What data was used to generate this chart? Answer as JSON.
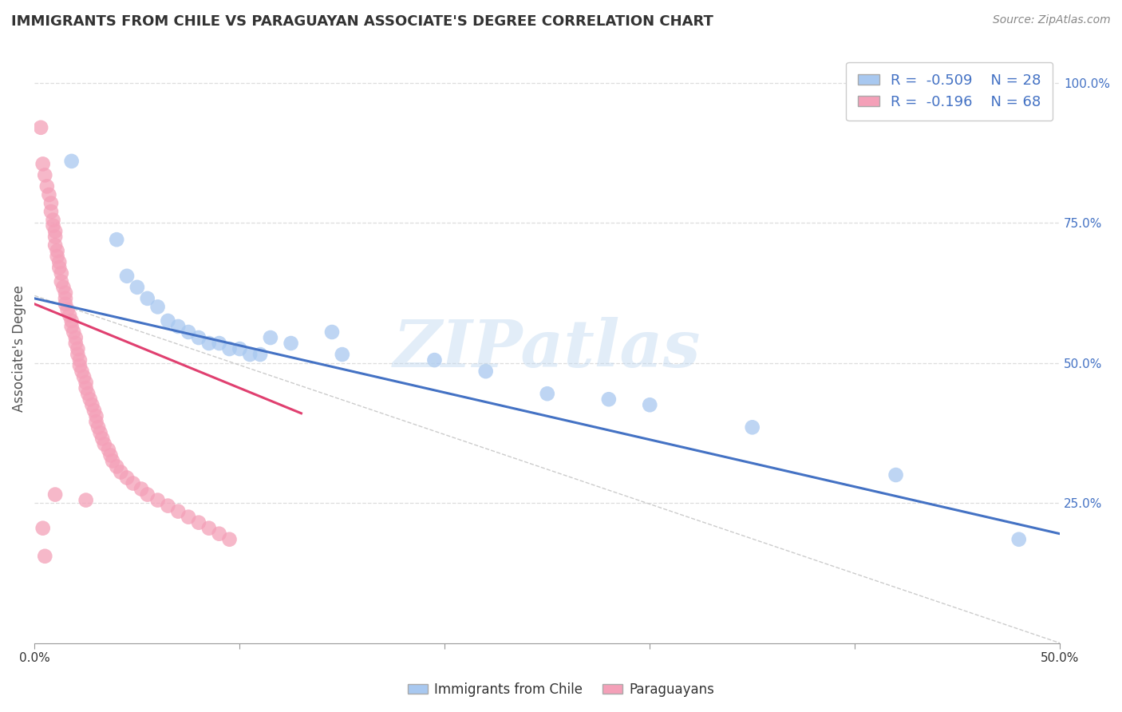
{
  "title": "IMMIGRANTS FROM CHILE VS PARAGUAYAN ASSOCIATE'S DEGREE CORRELATION CHART",
  "source": "Source: ZipAtlas.com",
  "ylabel": "Associate's Degree",
  "xlim": [
    0.0,
    0.5
  ],
  "ylim": [
    0.0,
    1.05
  ],
  "xtick_labels": [
    "0.0%",
    "",
    "",
    "",
    "",
    "50.0%"
  ],
  "xtick_vals": [
    0.0,
    0.1,
    0.2,
    0.3,
    0.4,
    0.5
  ],
  "ytick_labels_right": [
    "25.0%",
    "50.0%",
    "75.0%",
    "100.0%"
  ],
  "ytick_vals": [
    0.25,
    0.5,
    0.75,
    1.0
  ],
  "watermark": "ZIPatlas",
  "legend_R_blue": "-0.509",
  "legend_N_blue": "28",
  "legend_R_pink": "-0.196",
  "legend_N_pink": "68",
  "blue_color": "#A8C8F0",
  "pink_color": "#F4A0B8",
  "line_blue": "#4472C4",
  "line_pink": "#E04070",
  "line_diag": "#CCCCCC",
  "background": "#FFFFFF",
  "grid_color": "#DDDDDD",
  "title_color": "#333333",
  "legend_text_color": "#4472C4",
  "blue_scatter": [
    [
      0.018,
      0.86
    ],
    [
      0.04,
      0.72
    ],
    [
      0.045,
      0.655
    ],
    [
      0.05,
      0.635
    ],
    [
      0.055,
      0.615
    ],
    [
      0.06,
      0.6
    ],
    [
      0.065,
      0.575
    ],
    [
      0.07,
      0.565
    ],
    [
      0.075,
      0.555
    ],
    [
      0.08,
      0.545
    ],
    [
      0.085,
      0.535
    ],
    [
      0.09,
      0.535
    ],
    [
      0.095,
      0.525
    ],
    [
      0.1,
      0.525
    ],
    [
      0.105,
      0.515
    ],
    [
      0.11,
      0.515
    ],
    [
      0.115,
      0.545
    ],
    [
      0.125,
      0.535
    ],
    [
      0.145,
      0.555
    ],
    [
      0.15,
      0.515
    ],
    [
      0.195,
      0.505
    ],
    [
      0.22,
      0.485
    ],
    [
      0.25,
      0.445
    ],
    [
      0.28,
      0.435
    ],
    [
      0.3,
      0.425
    ],
    [
      0.35,
      0.385
    ],
    [
      0.42,
      0.3
    ],
    [
      0.48,
      0.185
    ]
  ],
  "pink_scatter": [
    [
      0.003,
      0.92
    ],
    [
      0.004,
      0.855
    ],
    [
      0.005,
      0.835
    ],
    [
      0.006,
      0.815
    ],
    [
      0.007,
      0.8
    ],
    [
      0.008,
      0.785
    ],
    [
      0.008,
      0.77
    ],
    [
      0.009,
      0.755
    ],
    [
      0.009,
      0.745
    ],
    [
      0.01,
      0.735
    ],
    [
      0.01,
      0.725
    ],
    [
      0.01,
      0.71
    ],
    [
      0.011,
      0.7
    ],
    [
      0.011,
      0.69
    ],
    [
      0.012,
      0.68
    ],
    [
      0.012,
      0.67
    ],
    [
      0.013,
      0.66
    ],
    [
      0.013,
      0.645
    ],
    [
      0.014,
      0.635
    ],
    [
      0.015,
      0.625
    ],
    [
      0.015,
      0.615
    ],
    [
      0.015,
      0.605
    ],
    [
      0.016,
      0.595
    ],
    [
      0.017,
      0.585
    ],
    [
      0.018,
      0.575
    ],
    [
      0.018,
      0.565
    ],
    [
      0.019,
      0.555
    ],
    [
      0.02,
      0.545
    ],
    [
      0.02,
      0.535
    ],
    [
      0.021,
      0.525
    ],
    [
      0.021,
      0.515
    ],
    [
      0.022,
      0.505
    ],
    [
      0.022,
      0.495
    ],
    [
      0.023,
      0.485
    ],
    [
      0.024,
      0.475
    ],
    [
      0.025,
      0.465
    ],
    [
      0.025,
      0.455
    ],
    [
      0.026,
      0.445
    ],
    [
      0.027,
      0.435
    ],
    [
      0.028,
      0.425
    ],
    [
      0.029,
      0.415
    ],
    [
      0.03,
      0.405
    ],
    [
      0.03,
      0.395
    ],
    [
      0.031,
      0.385
    ],
    [
      0.032,
      0.375
    ],
    [
      0.033,
      0.365
    ],
    [
      0.034,
      0.355
    ],
    [
      0.036,
      0.345
    ],
    [
      0.037,
      0.335
    ],
    [
      0.038,
      0.325
    ],
    [
      0.04,
      0.315
    ],
    [
      0.042,
      0.305
    ],
    [
      0.045,
      0.295
    ],
    [
      0.048,
      0.285
    ],
    [
      0.052,
      0.275
    ],
    [
      0.055,
      0.265
    ],
    [
      0.06,
      0.255
    ],
    [
      0.065,
      0.245
    ],
    [
      0.07,
      0.235
    ],
    [
      0.075,
      0.225
    ],
    [
      0.08,
      0.215
    ],
    [
      0.085,
      0.205
    ],
    [
      0.09,
      0.195
    ],
    [
      0.095,
      0.185
    ],
    [
      0.004,
      0.205
    ],
    [
      0.005,
      0.155
    ],
    [
      0.01,
      0.265
    ],
    [
      0.025,
      0.255
    ]
  ],
  "blue_line_x": [
    0.0,
    0.5
  ],
  "blue_line_y": [
    0.615,
    0.195
  ],
  "pink_line_x": [
    0.0,
    0.13
  ],
  "pink_line_y": [
    0.605,
    0.41
  ],
  "diag_line_x": [
    0.0,
    0.5
  ],
  "diag_line_y": [
    0.62,
    0.0
  ]
}
